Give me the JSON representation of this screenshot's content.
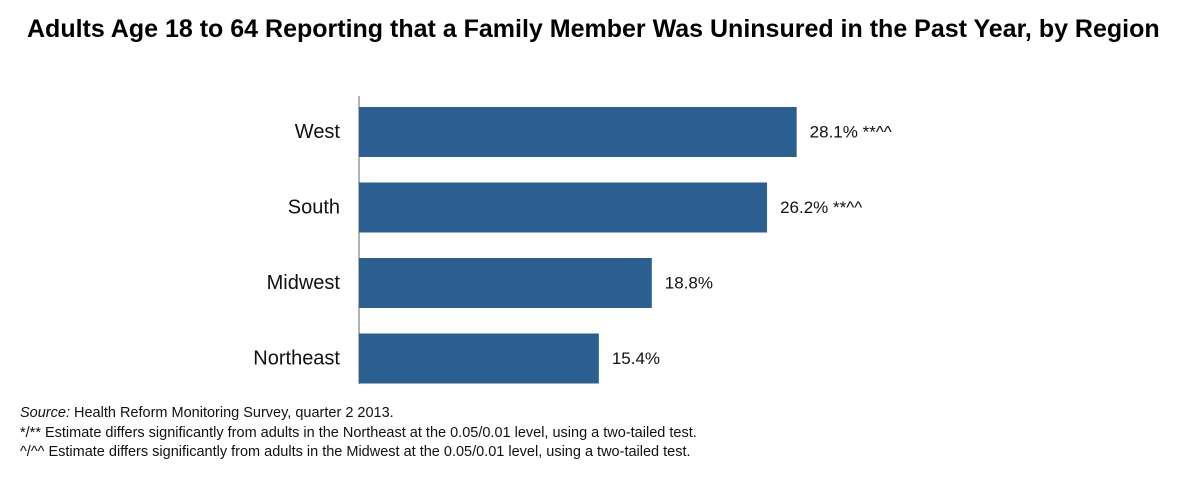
{
  "title": "Adults Age 18 to 64 Reporting that a Family Member Was Uninsured in the Past Year, by Region",
  "chart_data": {
    "type": "bar",
    "orientation": "horizontal",
    "categories": [
      "West",
      "South",
      "Midwest",
      "Northeast"
    ],
    "values": [
      28.1,
      26.2,
      18.8,
      15.4
    ],
    "data_labels": [
      "28.1% **^^",
      "26.2% **^^",
      "18.8%",
      "15.4%"
    ],
    "xlim": [
      0,
      40
    ],
    "bar_color": "#2b5f92",
    "axis_color": "#999999",
    "gridlines": false
  },
  "footnotes": {
    "source_label": "Source:",
    "source_text": " Health Reform Monitoring Survey, quarter 2 2013.",
    "note_northeast": "*/** Estimate differs significantly from adults in the Northeast at the 0.05/0.01 level, using a two-tailed test.",
    "note_midwest": "^/^^ Estimate differs significantly from adults in the Midwest at the 0.05/0.01 level, using a two-tailed test."
  }
}
